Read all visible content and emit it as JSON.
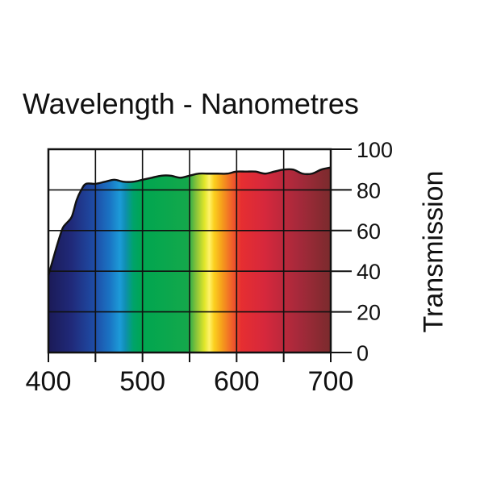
{
  "chart_data": {
    "type": "area",
    "title": "Wavelength - Nanometres",
    "xlabel": "Wavelength - Nanometres",
    "ylabel": "Transmission",
    "xlim": [
      400,
      700
    ],
    "ylim": [
      0,
      100
    ],
    "xticks": [
      400,
      500,
      600,
      700
    ],
    "xtick_labels": [
      "400",
      "500",
      "600",
      "700"
    ],
    "yticks": [
      0,
      20,
      40,
      60,
      80,
      100
    ],
    "ytick_labels": [
      "0",
      "20",
      "40",
      "60",
      "80",
      "100"
    ],
    "grid": true,
    "grid_x": [
      400,
      450,
      500,
      550,
      600,
      650,
      700
    ],
    "grid_y": [
      0,
      20,
      40,
      60,
      80,
      100
    ],
    "y_axis_side": "right",
    "fill": "visible-spectrum gradient",
    "series": [
      {
        "name": "Transmission",
        "x": [
          400,
          405,
          410,
          415,
          418,
          420,
          425,
          430,
          435,
          440,
          450,
          460,
          470,
          480,
          490,
          500,
          510,
          520,
          530,
          540,
          550,
          560,
          570,
          580,
          590,
          600,
          610,
          620,
          630,
          640,
          650,
          660,
          670,
          680,
          690,
          700
        ],
        "values": [
          38,
          46,
          54,
          61,
          63,
          64,
          67,
          75,
          80,
          83,
          83,
          84,
          85,
          84,
          84,
          85,
          86,
          87,
          87,
          86,
          87,
          88,
          88,
          88,
          88,
          89,
          89,
          89,
          88,
          89,
          90,
          90,
          88,
          88,
          90,
          91
        ]
      }
    ],
    "gradient_stops": [
      {
        "x": 400,
        "color": "#1b1a57"
      },
      {
        "x": 425,
        "color": "#202a7a"
      },
      {
        "x": 450,
        "color": "#1e4ea8"
      },
      {
        "x": 465,
        "color": "#1a73c3"
      },
      {
        "x": 476,
        "color": "#1c9bd8"
      },
      {
        "x": 482,
        "color": "#0f8fb0"
      },
      {
        "x": 490,
        "color": "#00a36b"
      },
      {
        "x": 500,
        "color": "#00a650"
      },
      {
        "x": 548,
        "color": "#14a84b"
      },
      {
        "x": 556,
        "color": "#7dbf3c"
      },
      {
        "x": 566,
        "color": "#e2e72a"
      },
      {
        "x": 571,
        "color": "#fff26a"
      },
      {
        "x": 576,
        "color": "#fbd01e"
      },
      {
        "x": 585,
        "color": "#f59a1c"
      },
      {
        "x": 595,
        "color": "#f0602a"
      },
      {
        "x": 605,
        "color": "#e62e31"
      },
      {
        "x": 630,
        "color": "#d6283c"
      },
      {
        "x": 665,
        "color": "#a7293b"
      },
      {
        "x": 700,
        "color": "#7a2b2d"
      }
    ]
  }
}
